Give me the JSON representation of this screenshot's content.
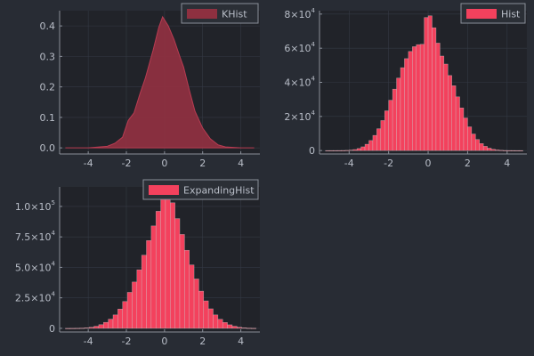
{
  "colors": {
    "background": "#282c34",
    "plot_area": "#212329",
    "bar_fill": "#f3415d",
    "kde_fill": "#8e3040",
    "kde_stroke": "#b83c52",
    "axis": "#8a8f99",
    "grid": "#343944",
    "tick_text": "#b9bec8",
    "legend_bg": "#2b2f36",
    "legend_border": "#8a8f99"
  },
  "chart_data": [
    {
      "id": "khist",
      "type": "area",
      "legend": "KHist",
      "legend_placement": "top-right",
      "grid": true,
      "xlim": [
        -5.5,
        5.0
      ],
      "ylim": [
        -0.02,
        0.45
      ],
      "xticks": [
        -4,
        -2,
        0,
        2,
        4
      ],
      "xtick_labels": [
        "-4",
        "-2",
        "0",
        "2",
        "4"
      ],
      "yticks": [
        0,
        0.1,
        0.2,
        0.3,
        0.4
      ],
      "ytick_labels": [
        "0.0",
        "0.1",
        "0.2",
        "0.3",
        "0.4"
      ],
      "x": [
        -5.2,
        -4.0,
        -3.0,
        -2.6,
        -2.2,
        -1.9,
        -1.6,
        -1.3,
        -1.0,
        -0.6,
        -0.3,
        -0.1,
        0.2,
        0.5,
        0.8,
        1.0,
        1.3,
        1.6,
        2.0,
        2.4,
        2.8,
        3.2,
        4.0,
        4.7
      ],
      "y": [
        0.0,
        0.0,
        0.005,
        0.015,
        0.035,
        0.09,
        0.115,
        0.175,
        0.23,
        0.32,
        0.395,
        0.43,
        0.4,
        0.355,
        0.3,
        0.265,
        0.19,
        0.12,
        0.065,
        0.03,
        0.01,
        0.003,
        0.0,
        0.0
      ]
    },
    {
      "id": "hist",
      "type": "bar",
      "legend": "Hist",
      "legend_placement": "top-right",
      "grid": true,
      "xlim": [
        -5.5,
        5.0
      ],
      "ylim": [
        -2000,
        82000
      ],
      "xticks": [
        -4,
        -2,
        0,
        2,
        4
      ],
      "xtick_labels": [
        "-4",
        "-2",
        "0",
        "2",
        "4"
      ],
      "yticks": [
        0,
        20000,
        40000,
        60000,
        80000
      ],
      "ytick_labels": [
        {
          "base": "0",
          "exp": ""
        },
        {
          "base": "2×10",
          "exp": "4"
        },
        {
          "base": "4×10",
          "exp": "4"
        },
        {
          "base": "6×10",
          "exp": "4"
        },
        {
          "base": "8×10",
          "exp": "4"
        }
      ],
      "bin_edges": [
        -5.2,
        -5.0,
        -4.8,
        -4.6,
        -4.4,
        -4.2,
        -4.0,
        -3.8,
        -3.6,
        -3.4,
        -3.2,
        -3.0,
        -2.8,
        -2.6,
        -2.4,
        -2.2,
        -2.0,
        -1.8,
        -1.6,
        -1.4,
        -1.2,
        -1.0,
        -0.8,
        -0.6,
        -0.4,
        -0.2,
        0.0,
        0.2,
        0.4,
        0.6,
        0.8,
        1.0,
        1.2,
        1.4,
        1.6,
        1.8,
        2.0,
        2.2,
        2.4,
        2.6,
        2.8,
        3.0,
        3.2,
        3.4,
        3.6,
        3.8,
        4.0,
        4.2,
        4.4,
        4.6,
        4.8
      ],
      "values": [
        2,
        4,
        10,
        25,
        60,
        140,
        300,
        600,
        1200,
        2200,
        3700,
        5900,
        8900,
        12800,
        17600,
        23300,
        29500,
        36000,
        42500,
        48600,
        53900,
        58100,
        60900,
        62100,
        62300,
        78000,
        79000,
        72000,
        63000,
        55400,
        50700,
        44000,
        38000,
        31500,
        25000,
        19100,
        13900,
        9700,
        6500,
        4100,
        2500,
        1400,
        750,
        380,
        180,
        80,
        30,
        12,
        4,
        2
      ]
    },
    {
      "id": "expandinghist",
      "type": "bar",
      "legend": "ExpandingHist",
      "legend_placement": "top-right",
      "grid": true,
      "xlim": [
        -5.5,
        5.0
      ],
      "ylim": [
        -3000,
        116000
      ],
      "xticks": [
        -4,
        -2,
        0,
        2,
        4
      ],
      "xtick_labels": [
        "-4",
        "-2",
        "0",
        "2",
        "4"
      ],
      "yticks": [
        0,
        25000,
        50000,
        75000,
        100000
      ],
      "ytick_labels": [
        {
          "base": "0",
          "exp": ""
        },
        {
          "base": "2.5×10",
          "exp": "4"
        },
        {
          "base": "5.0×10",
          "exp": "4"
        },
        {
          "base": "7.5×10",
          "exp": "4"
        },
        {
          "base": "1.0×10",
          "exp": "5"
        }
      ],
      "bin_edges": [
        -5.2,
        -4.95,
        -4.7,
        -4.45,
        -4.2,
        -3.95,
        -3.7,
        -3.45,
        -3.2,
        -2.95,
        -2.7,
        -2.45,
        -2.2,
        -1.95,
        -1.7,
        -1.45,
        -1.2,
        -0.95,
        -0.7,
        -0.45,
        -0.2,
        0.05,
        0.3,
        0.55,
        0.8,
        1.05,
        1.3,
        1.55,
        1.8,
        2.05,
        2.3,
        2.55,
        2.8,
        3.05,
        3.3,
        3.55,
        3.8,
        4.05,
        4.3,
        4.55,
        4.8
      ],
      "values": [
        10,
        30,
        80,
        200,
        450,
        900,
        1700,
        3000,
        4900,
        7500,
        11000,
        15800,
        22000,
        29500,
        38000,
        48000,
        60000,
        72000,
        84000,
        96000,
        108000,
        112000,
        103000,
        90000,
        77000,
        64000,
        52000,
        40500,
        30500,
        22500,
        16000,
        11000,
        7400,
        4800,
        2900,
        1700,
        900,
        450,
        200,
        80
      ]
    }
  ]
}
